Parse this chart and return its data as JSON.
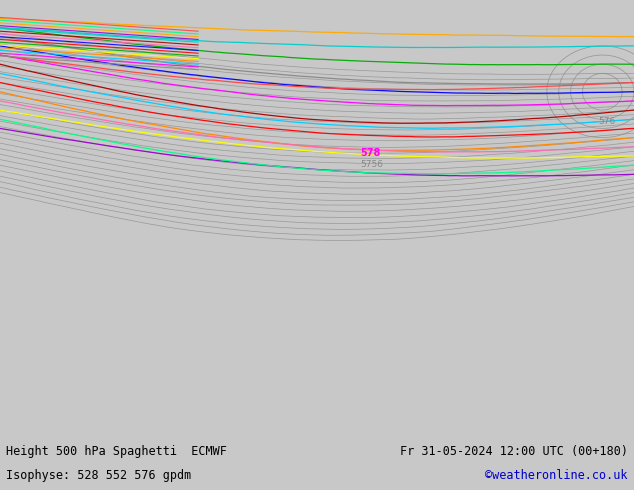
{
  "title_left": "Height 500 hPa Spaghetti  ECMWF",
  "title_right": "Fr 31-05-2024 12:00 UTC (00+180)",
  "subtitle_left": "Isophyse: 528 552 576 gpdm",
  "subtitle_right": "©weatheronline.co.uk",
  "subtitle_right_color": "#0000cc",
  "background_color": "#c8c8c8",
  "land_color": "#90ee90",
  "ocean_color": "#c8c8c8",
  "border_color": "#888888",
  "text_color": "#000000",
  "figsize": [
    6.34,
    4.9
  ],
  "dpi": 100,
  "footer_fontsize": 8.5,
  "spaghetti_colors": [
    "#888888",
    "#ff00ff",
    "#00ccff",
    "#ff8800",
    "#ffff00",
    "#00aa00",
    "#ff0000",
    "#0000ff",
    "#ff69b4",
    "#aa0000",
    "#00cccc",
    "#9900cc",
    "#ffaa00",
    "#00ff88",
    "#ff4444"
  ],
  "label_578_color": "#ff00ff",
  "label_576_color": "#888888"
}
